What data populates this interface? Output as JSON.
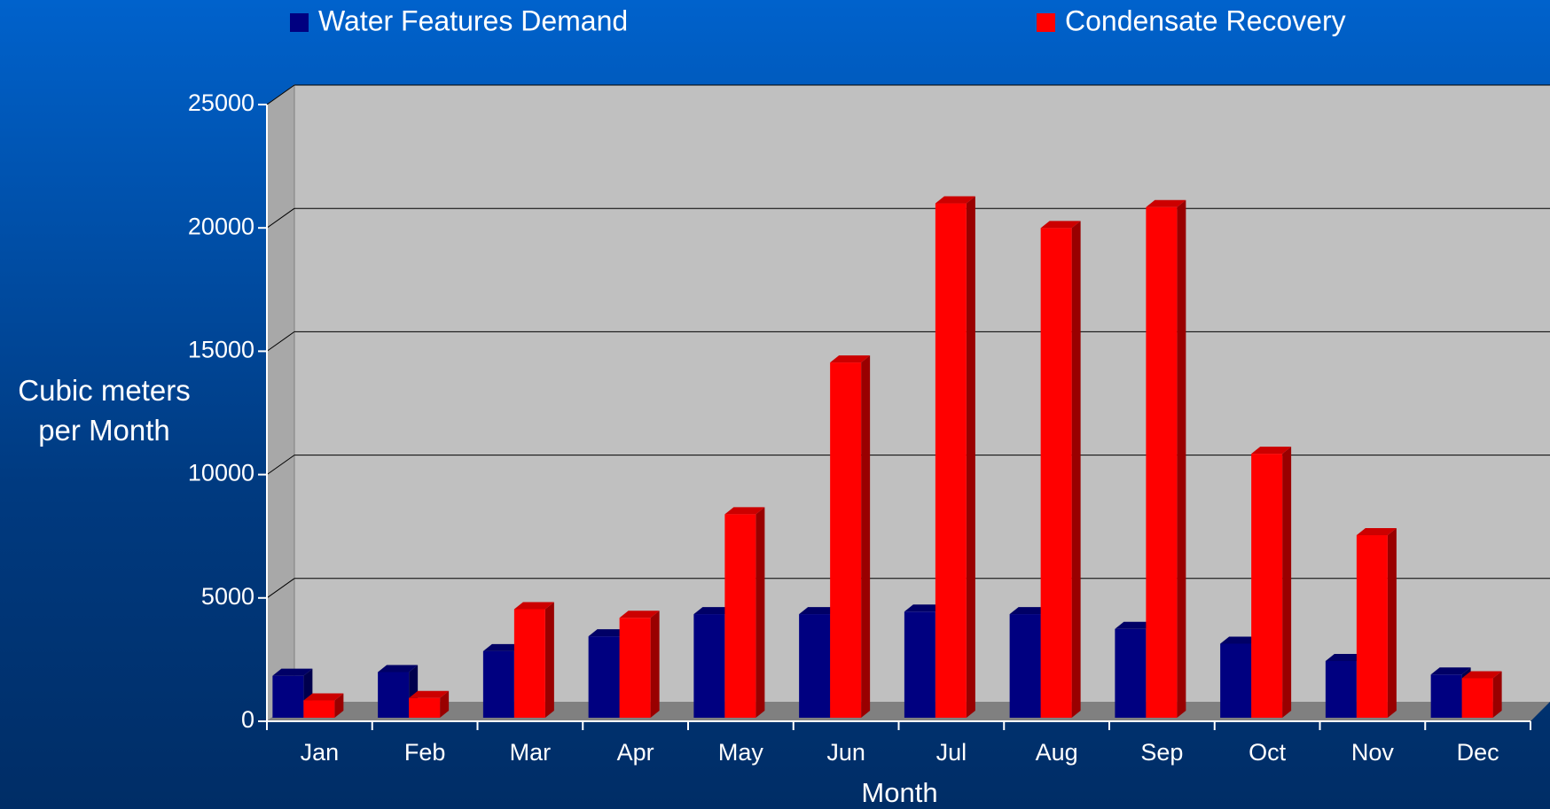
{
  "chart_data": {
    "type": "bar3d",
    "xlabel": "Month",
    "ylabel": "Cubic meters per Month",
    "categories": [
      "Jan",
      "Feb",
      "Mar",
      "Apr",
      "May",
      "Jun",
      "Jul",
      "Aug",
      "Sep",
      "Oct",
      "Nov",
      "Dec"
    ],
    "series": [
      {
        "name": "Water Features Demand",
        "color": "#000080",
        "values": [
          1700,
          1850,
          2700,
          3300,
          4200,
          4200,
          4300,
          4200,
          3600,
          3000,
          2300,
          1750
        ]
      },
      {
        "name": "Condensate Recovery",
        "color": "#ff0000",
        "values": [
          700,
          800,
          4400,
          4050,
          8250,
          14400,
          20850,
          19850,
          20700,
          10700,
          7400,
          1600
        ]
      }
    ],
    "ylim": [
      0,
      25000
    ],
    "yticks": [
      0,
      5000,
      10000,
      15000,
      20000,
      25000
    ],
    "grid": true
  }
}
